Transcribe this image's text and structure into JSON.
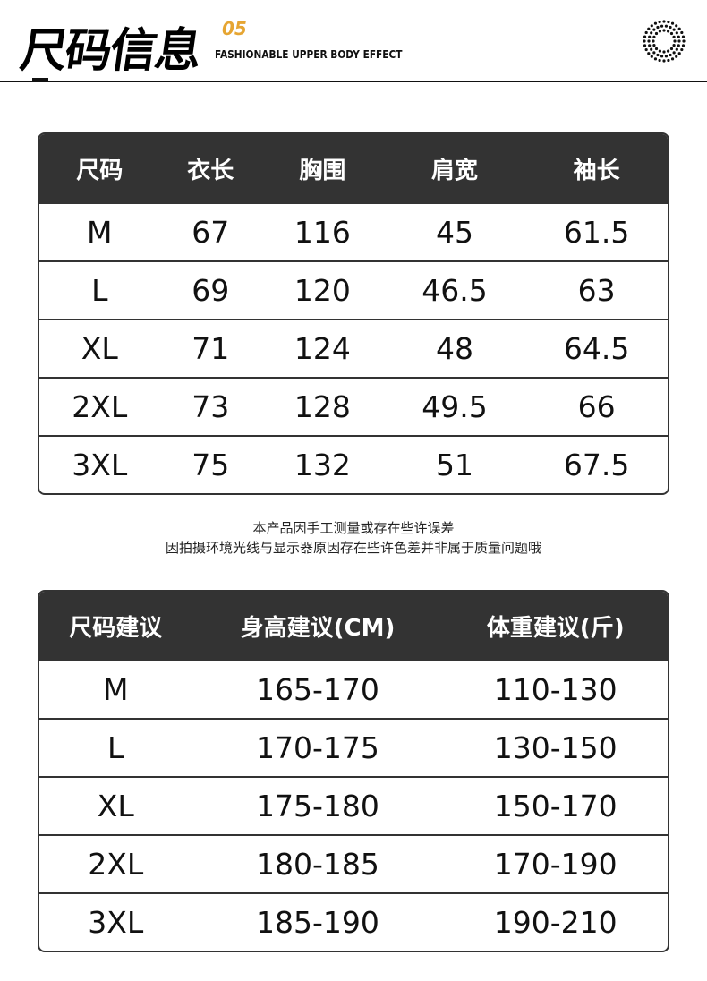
{
  "header": {
    "title": "尺码信息",
    "number": "05",
    "subtitle": "FASHIONABLE UPPER BODY EFFECT",
    "accent": "#e6a532",
    "icon": "dot-circle-icon"
  },
  "size_table": {
    "headers": [
      "尺码",
      "衣长",
      "胸围",
      "肩宽",
      "袖长"
    ],
    "rows": [
      [
        "M",
        "67",
        "116",
        "45",
        "61.5"
      ],
      [
        "L",
        "69",
        "120",
        "46.5",
        "63"
      ],
      [
        "XL",
        "71",
        "124",
        "48",
        "64.5"
      ],
      [
        "2XL",
        "73",
        "128",
        "49.5",
        "66"
      ],
      [
        "3XL",
        "75",
        "132",
        "51",
        "67.5"
      ]
    ]
  },
  "note": {
    "line1": "本产品因手工测量或存在些许误差",
    "line2": "因拍摄环境光线与显示器原因存在些许色差并非属于质量问题哦"
  },
  "recommend_table": {
    "headers": [
      "尺码建议",
      "身高建议(CM)",
      "体重建议(斤)"
    ],
    "rows": [
      [
        "M",
        "165-170",
        "110-130"
      ],
      [
        "L",
        "170-175",
        "130-150"
      ],
      [
        "XL",
        "175-180",
        "150-170"
      ],
      [
        "2XL",
        "180-185",
        "170-190"
      ],
      [
        "3XL",
        "185-190",
        "190-210"
      ]
    ]
  }
}
